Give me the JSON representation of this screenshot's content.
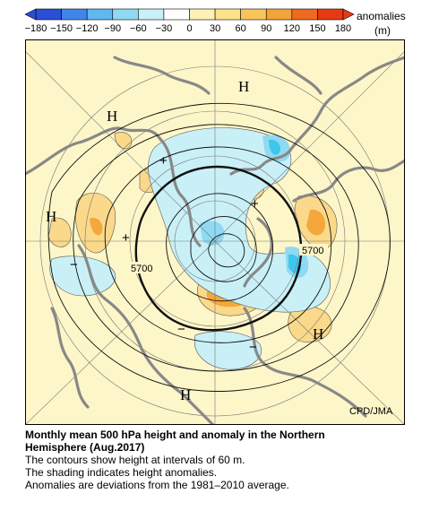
{
  "colorbar": {
    "tick_labels": [
      "−180",
      "−150",
      "−120",
      "−90",
      "−60",
      "−30",
      "0",
      "30",
      "60",
      "90",
      "120",
      "150",
      "180"
    ],
    "title": "anomalies",
    "unit": "(m)",
    "colors": [
      "#2a4fd6",
      "#3f86ea",
      "#5fb8f0",
      "#8fdaf2",
      "#c8f0f6",
      "#ffffff",
      "#ffffff",
      "#fff1b4",
      "#fde28a",
      "#f8c55a",
      "#f2a33a",
      "#ee6a22",
      "#e83a12"
    ]
  },
  "map": {
    "credit": "CPD/JMA",
    "contour_label_a": "5700",
    "contour_label_b": "5700",
    "high_labels": [
      "H",
      "H",
      "H",
      "H",
      "H"
    ],
    "low_symbols": [
      "+",
      "+",
      "+",
      "−",
      "−",
      "−"
    ],
    "land_color": "#888888",
    "background_color": "#fdf6c8"
  },
  "caption": {
    "title_line1": "Monthly mean 500 hPa height and anomaly in the Northern",
    "title_line2": "Hemisphere (Aug.2017)",
    "line3": "The contours show height at intervals of 60 m.",
    "line4": "The shading indicates height anomalies.",
    "line5": "Anomalies are deviations from the 1981–2010 average."
  }
}
